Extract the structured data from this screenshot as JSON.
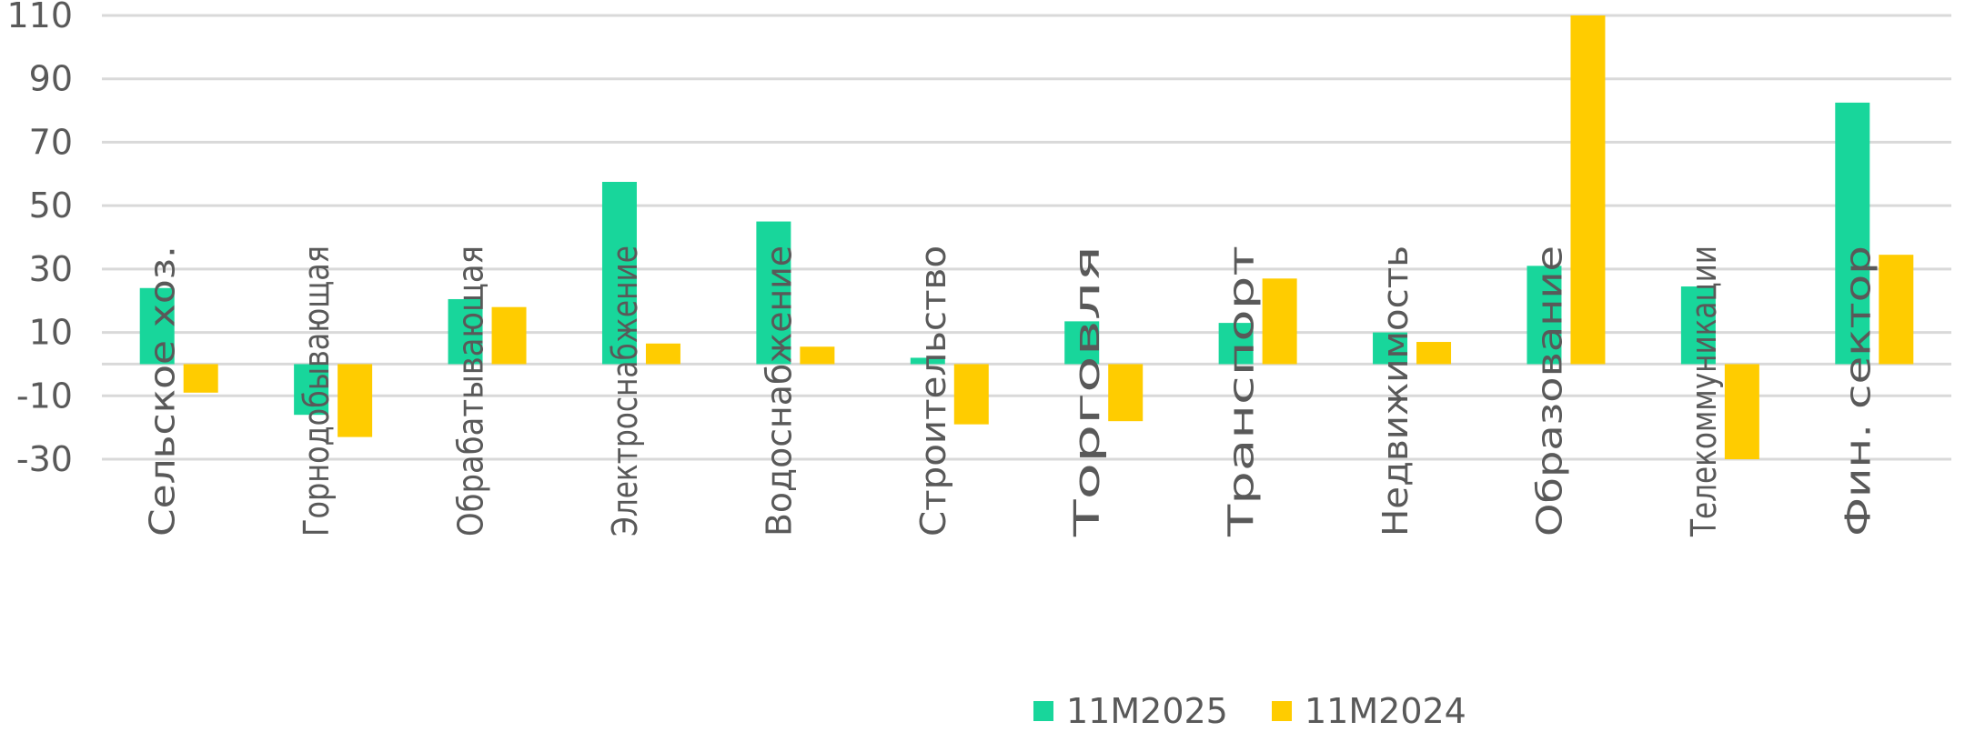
{
  "chart_data": {
    "type": "bar",
    "title": "",
    "xlabel": "",
    "ylabel": "",
    "ylim": [
      -30,
      110
    ],
    "yticks": [
      110,
      90,
      70,
      50,
      30,
      10,
      -10,
      -30
    ],
    "grid": true,
    "legend_position": "bottom",
    "categories": [
      "Сельское хоз.",
      "Горнодобывающая",
      "Обрабатывающая",
      "Электроснабжение",
      "Водоснабжение",
      "Строительство",
      "Торговля",
      "Транспорт",
      "Недвижимость",
      "Образование",
      "Телекоммуникации",
      "Фин. сектор"
    ],
    "series": [
      {
        "name": "11M2025",
        "color": "#18d69b",
        "values": [
          24,
          -16,
          20.5,
          57.5,
          45,
          2,
          13.5,
          13,
          10,
          31,
          24.5,
          82.5
        ]
      },
      {
        "name": "11M2024",
        "color": "#ffcc00",
        "values": [
          -9,
          -23,
          18,
          6.5,
          5.5,
          -19,
          -18,
          27,
          7,
          110,
          -30,
          34.5
        ]
      }
    ]
  }
}
